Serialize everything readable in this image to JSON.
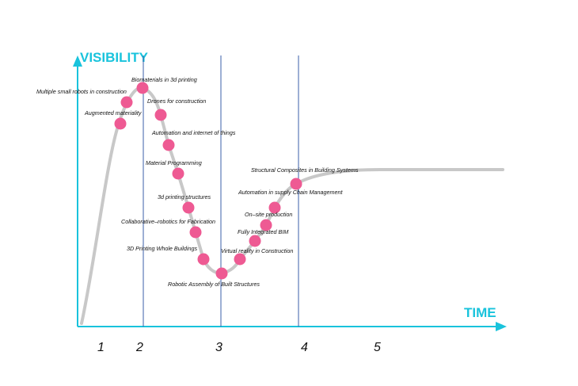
{
  "axes": {
    "y_title": "VISIBILITY",
    "x_title": "TIME",
    "accent_color": "#19c3dc"
  },
  "phases": [
    "1",
    "2",
    "3",
    "4",
    "5"
  ],
  "curve_color": "#c8c8c8",
  "marker_color": "#ee5a93",
  "divider_color": "#3b5fa8",
  "technologies": [
    "Biomaterials in 3d printing",
    "Multiple small robots in construction",
    "Drones for construction",
    "Augmented materiality",
    "Automation and internet of things",
    "Material Programming",
    "3d printing structures",
    "Collaborative–robotics for Fabrication",
    "3D Printing Whole Buildings",
    "Robotic Assembly of Built Structures",
    "Virtual reality in Construction",
    "Fully Integrated BIM",
    "On–site production",
    "Automation in supply Chain Management",
    "Structural Composites in Building Systems"
  ]
}
